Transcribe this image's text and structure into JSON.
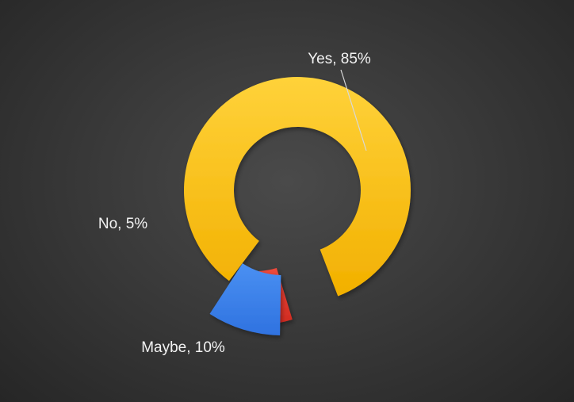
{
  "chart_data": {
    "type": "pie",
    "variant": "exploded-doughnut",
    "slices": [
      {
        "category": "Yes",
        "value": 85,
        "label": "Yes, 85%",
        "color": "#FFC000"
      },
      {
        "category": "No",
        "value": 5,
        "label": "No, 5%",
        "color": "#E8382C"
      },
      {
        "category": "Maybe",
        "value": 10,
        "label": "Maybe, 10%",
        "color": "#3C84EE"
      }
    ],
    "title": "",
    "legend": "none",
    "background": "#3a3a3a"
  }
}
